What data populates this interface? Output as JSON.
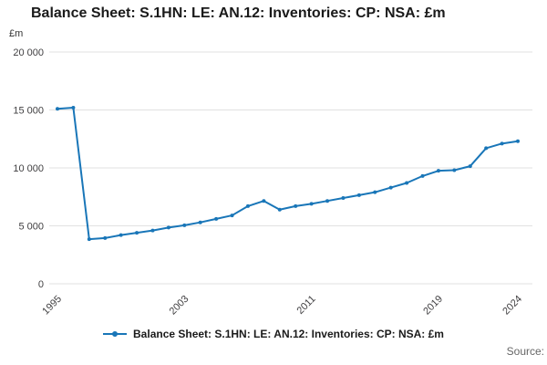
{
  "page": {
    "title": "Balance Sheet: S.1HN: LE: AN.12: Inventories: CP: NSA: £m",
    "unit_label": "£m",
    "legend_label": "Balance Sheet: S.1HN: LE: AN.12: Inventories: CP: NSA: £m",
    "source_label": "Source:"
  },
  "chart_data": {
    "type": "line",
    "title": "Balance Sheet: S.1HN: LE: AN.12: Inventories: CP: NSA: £m",
    "xlabel": "",
    "ylabel": "£m",
    "series_name": "Balance Sheet: S.1HN: LE: AN.12: Inventories: CP: NSA: £m",
    "x": [
      1995,
      1996,
      1997,
      1998,
      1999,
      2000,
      2001,
      2002,
      2003,
      2004,
      2005,
      2006,
      2007,
      2008,
      2009,
      2010,
      2011,
      2012,
      2013,
      2014,
      2015,
      2016,
      2017,
      2018,
      2019,
      2020,
      2021,
      2022,
      2023,
      2024
    ],
    "values": [
      15100,
      15200,
      3850,
      3950,
      4200,
      4400,
      4600,
      4850,
      5050,
      5300,
      5600,
      5900,
      6700,
      7150,
      6400,
      6700,
      6900,
      7150,
      7400,
      7650,
      7900,
      8300,
      8700,
      9300,
      9750,
      9800,
      10150,
      11700,
      12100,
      12300
    ],
    "ylim": [
      0,
      20000
    ],
    "yticks": [
      0,
      5000,
      10000,
      15000,
      20000
    ],
    "ytick_labels": [
      "0",
      "5 000",
      "10 000",
      "15 000",
      "20 000"
    ],
    "xtick_labels": [
      "1995",
      "2003",
      "2011",
      "2019",
      "2024"
    ],
    "grid": true,
    "legend_position": "bottom",
    "line_color": "#1976b8",
    "grid_color": "#e1e1e1",
    "tick_text_color": "#414042"
  }
}
